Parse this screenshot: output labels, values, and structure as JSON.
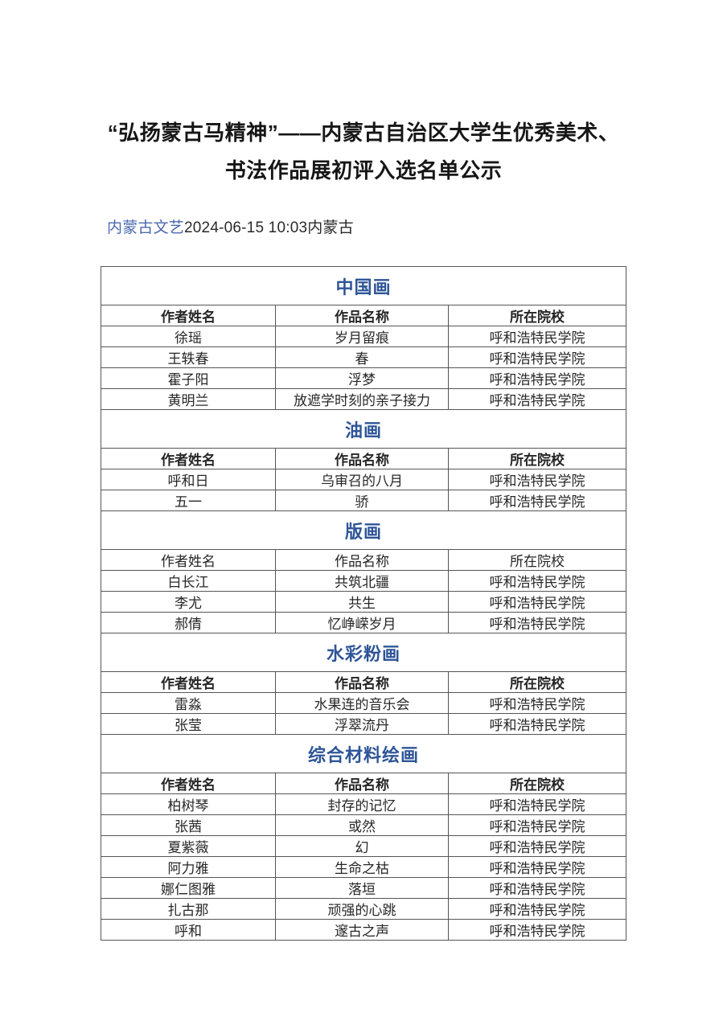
{
  "header": {
    "title_line1": "“弘扬蒙古马精神”——内蒙古自治区大学生优秀美术、",
    "title_line2": "书法作品展初评入选名单公示",
    "byline": {
      "source": "内蒙古文艺",
      "timestamp": "2024-06-15 10:03",
      "location": "内蒙古"
    }
  },
  "colors": {
    "section_title_blue": "#2e5597",
    "byline_link_blue": "#4a69b0",
    "table_border": "#555555",
    "body_text": "#262626"
  },
  "table": {
    "columns": [
      "作者姓名",
      "作品名称",
      "所在院校"
    ],
    "sections": [
      {
        "title": "中国画",
        "header_bold": true,
        "rows": [
          [
            "徐瑶",
            "岁月留痕",
            "呼和浩特民学院"
          ],
          [
            "王轶春",
            "春",
            "呼和浩特民学院"
          ],
          [
            "霍子阳",
            "浮梦",
            "呼和浩特民学院"
          ],
          [
            "黄明兰",
            "放遮学时刻的亲子接力",
            "呼和浩特民学院"
          ]
        ]
      },
      {
        "title": "油画",
        "header_bold": true,
        "rows": [
          [
            "呼和日",
            "乌审召的八月",
            "呼和浩特民学院"
          ],
          [
            "五一",
            "骄",
            "呼和浩特民学院"
          ]
        ]
      },
      {
        "title": "版画",
        "header_bold": false,
        "rows": [
          [
            "白长江",
            "共筑北疆",
            "呼和浩特民学院"
          ],
          [
            "李尤",
            "共生",
            "呼和浩特民学院"
          ],
          [
            "郝倩",
            "忆峥嵘岁月",
            "呼和浩特民学院"
          ]
        ]
      },
      {
        "title": "水彩粉画",
        "header_bold": true,
        "rows": [
          [
            "雷淼",
            "水果连的音乐会",
            "呼和浩特民学院"
          ],
          [
            "张莹",
            "浮翠流丹",
            "呼和浩特民学院"
          ]
        ]
      },
      {
        "title": "综合材料绘画",
        "header_bold": true,
        "rows": [
          [
            "柏树琴",
            "封存的记忆",
            "呼和浩特民学院"
          ],
          [
            "张茜",
            "或然",
            "呼和浩特民学院"
          ],
          [
            "夏紫薇",
            "幻",
            "呼和浩特民学院"
          ],
          [
            "阿力雅",
            "生命之枯",
            "呼和浩特民学院"
          ],
          [
            "娜仁图雅",
            "落垣",
            "呼和浩特民学院"
          ],
          [
            "扎古那",
            "顽强的心跳",
            "呼和浩特民学院"
          ],
          [
            "呼和",
            "邃古之声",
            "呼和浩特民学院"
          ]
        ]
      }
    ]
  }
}
